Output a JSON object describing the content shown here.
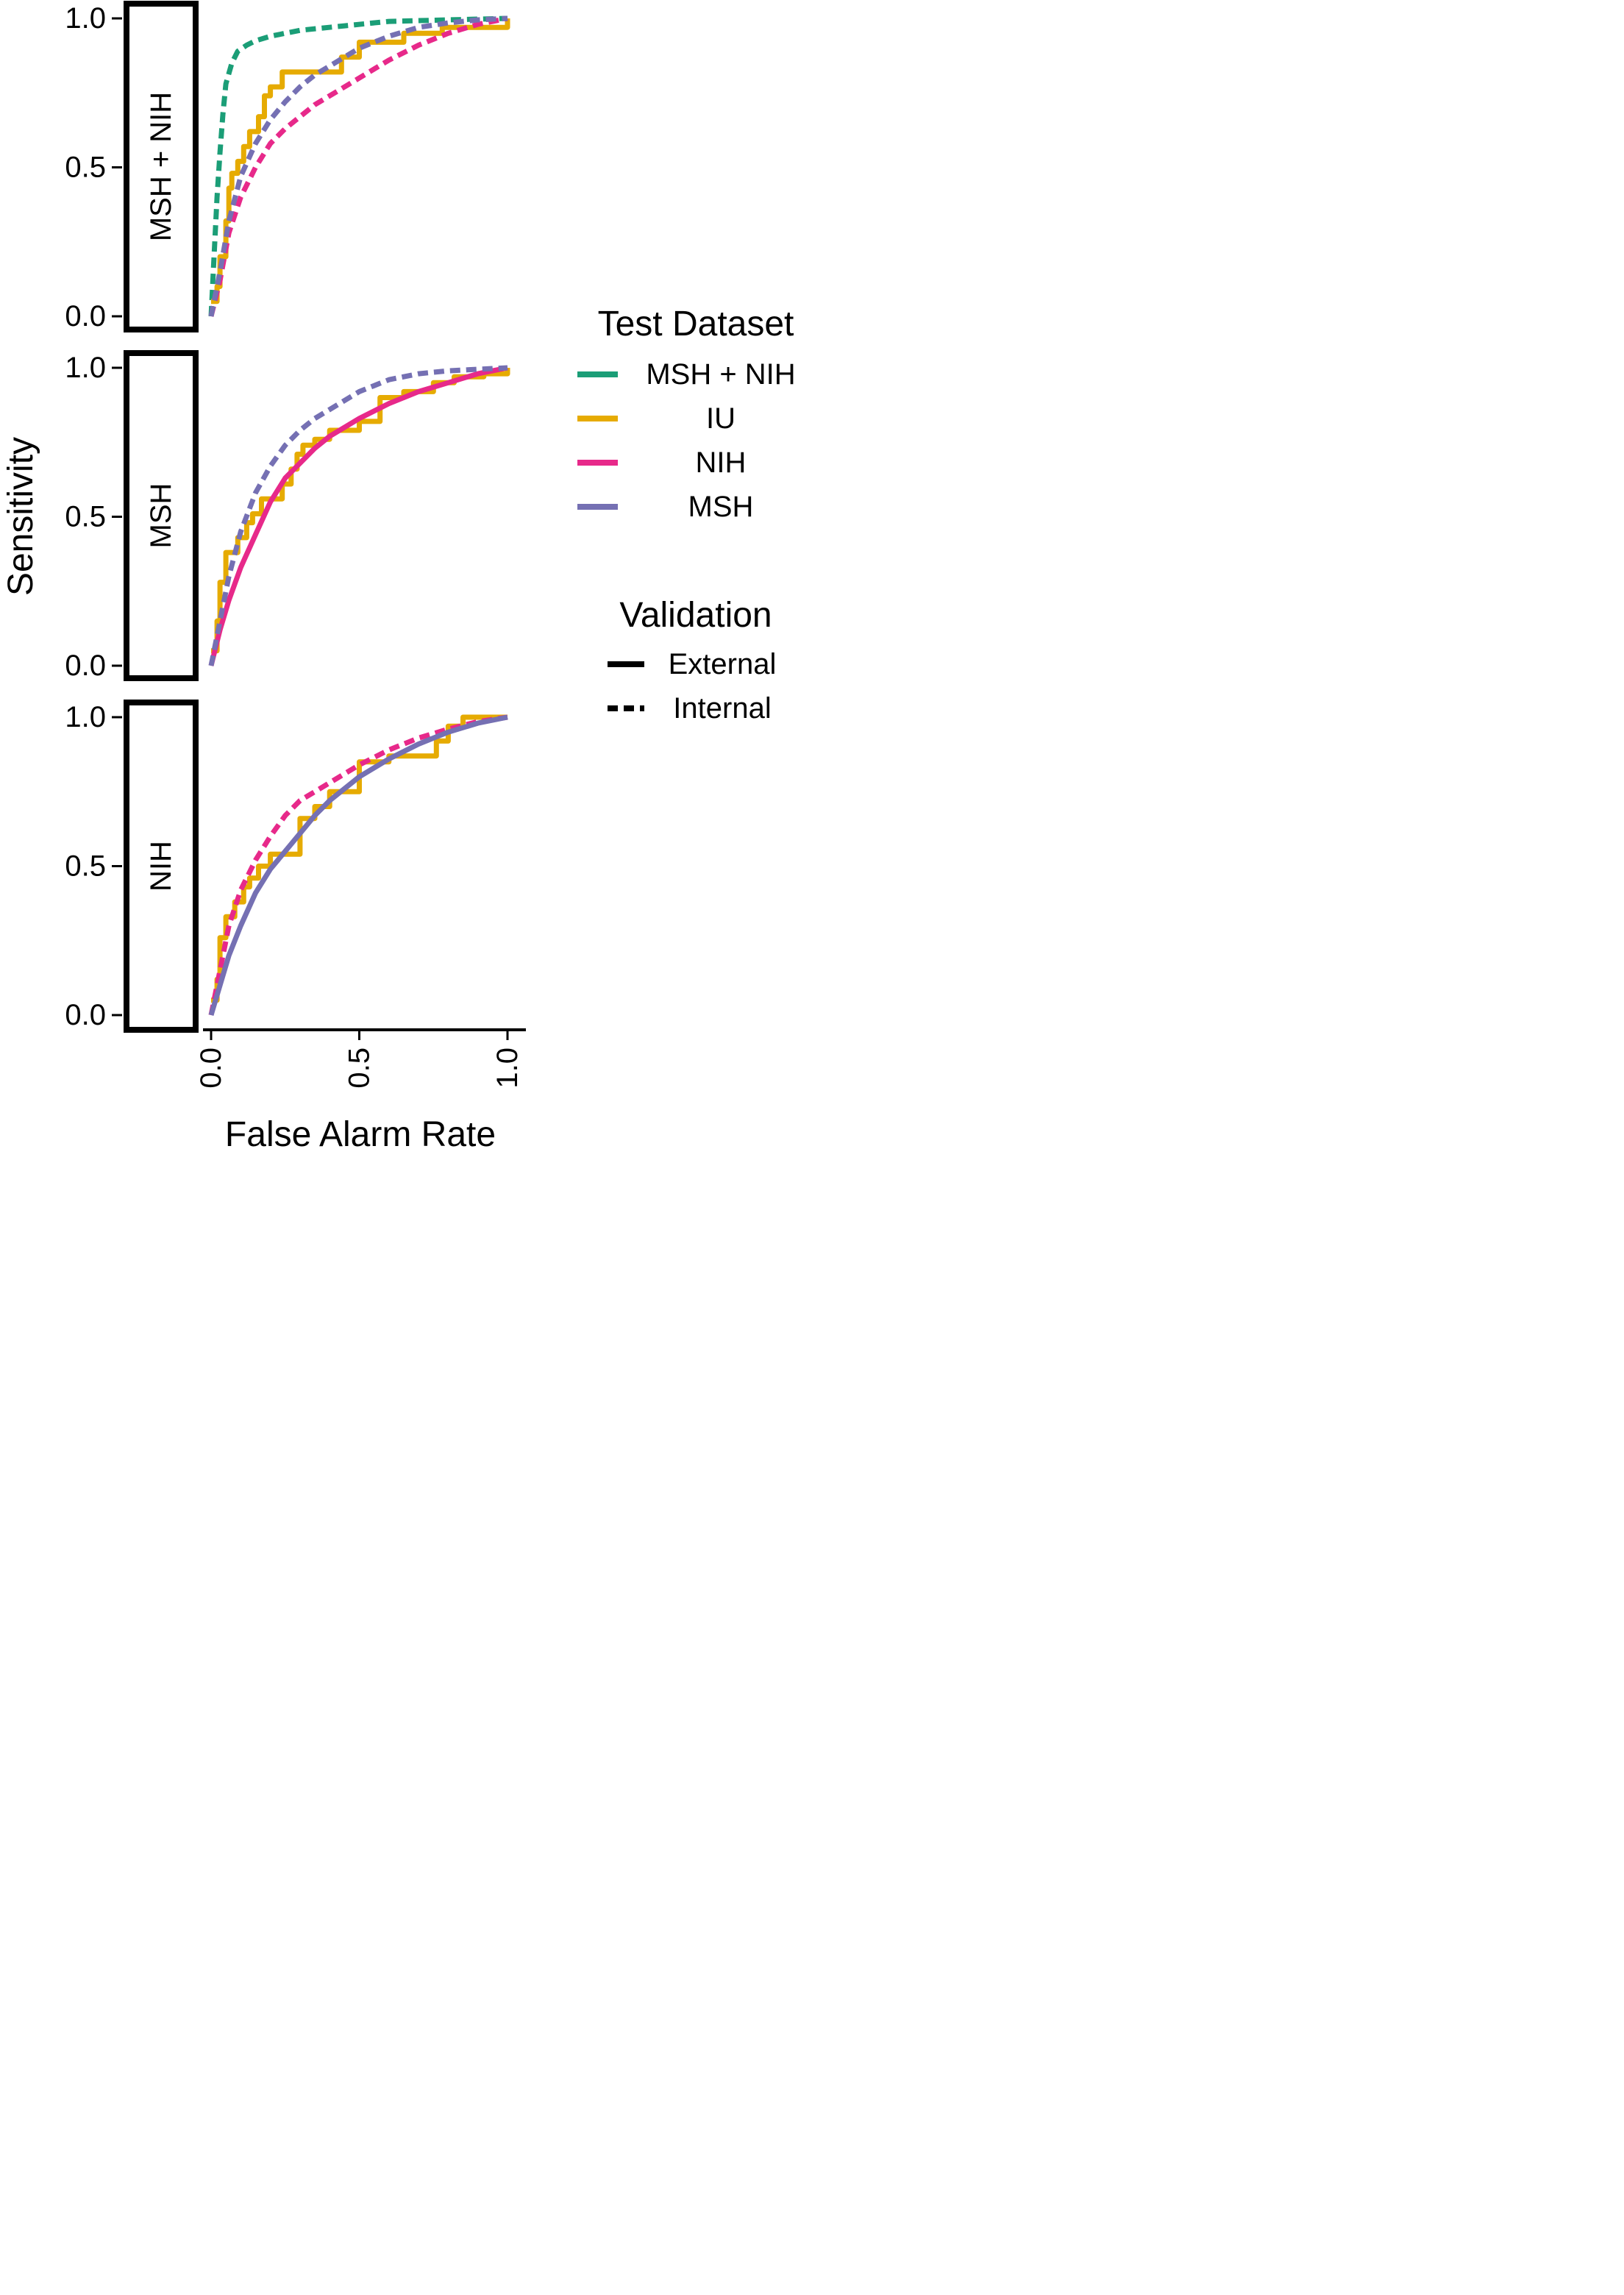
{
  "chart_data": {
    "type": "line",
    "xlabel": "False Alarm Rate",
    "ylabel": "Sensitivity",
    "xlim": [
      0,
      1
    ],
    "ylim": [
      0,
      1
    ],
    "x_ticks": [
      "0.0",
      "0.5",
      "1.0"
    ],
    "y_ticks": [
      "0.0",
      "0.5",
      "1.0"
    ],
    "grid": false,
    "legend_position": "right",
    "colors": {
      "MSH + NIH": "#1b9e77",
      "IU": "#e6ab02",
      "NIH": "#e7298a",
      "MSH": "#7570b3"
    },
    "legends": {
      "test_dataset": {
        "title": "Test Dataset",
        "entries": [
          "MSH + NIH",
          "IU",
          "NIH",
          "MSH"
        ]
      },
      "validation": {
        "title": "Validation",
        "entries": [
          "External",
          "Internal"
        ]
      }
    },
    "panels": [
      {
        "strip": "MSH + NIH",
        "series": [
          {
            "test_dataset": "MSH + NIH",
            "validation": "Internal",
            "step": false,
            "x": [
              0,
              0.01,
              0.02,
              0.03,
              0.04,
              0.05,
              0.07,
              0.09,
              0.12,
              0.15,
              0.2,
              0.3,
              0.45,
              0.6,
              0.8,
              1.0
            ],
            "y": [
              0,
              0.2,
              0.4,
              0.55,
              0.68,
              0.78,
              0.85,
              0.89,
              0.91,
              0.925,
              0.94,
              0.96,
              0.975,
              0.99,
              0.995,
              1.0
            ]
          },
          {
            "test_dataset": "IU",
            "validation": "External",
            "step": true,
            "x": [
              0,
              0.02,
              0.03,
              0.05,
              0.06,
              0.07,
              0.09,
              0.11,
              0.13,
              0.16,
              0.18,
              0.2,
              0.24,
              0.33,
              0.4,
              0.44,
              0.5,
              0.59,
              0.65,
              0.7,
              0.78,
              0.9,
              0.98,
              1.0
            ],
            "y": [
              0.05,
              0.1,
              0.2,
              0.32,
              0.43,
              0.48,
              0.52,
              0.57,
              0.62,
              0.67,
              0.74,
              0.77,
              0.82,
              0.82,
              0.82,
              0.87,
              0.92,
              0.92,
              0.95,
              0.95,
              0.97,
              0.97,
              0.97,
              1.0
            ]
          },
          {
            "test_dataset": "NIH",
            "validation": "Internal",
            "step": false,
            "x": [
              0,
              0.03,
              0.06,
              0.1,
              0.15,
              0.2,
              0.25,
              0.3,
              0.35,
              0.4,
              0.5,
              0.6,
              0.7,
              0.8,
              0.9,
              1.0
            ],
            "y": [
              0,
              0.12,
              0.28,
              0.4,
              0.5,
              0.58,
              0.63,
              0.67,
              0.71,
              0.74,
              0.8,
              0.86,
              0.91,
              0.95,
              0.98,
              1.0
            ]
          },
          {
            "test_dataset": "MSH",
            "validation": "Internal",
            "step": false,
            "x": [
              0,
              0.03,
              0.06,
              0.1,
              0.15,
              0.2,
              0.25,
              0.3,
              0.35,
              0.4,
              0.5,
              0.6,
              0.7,
              0.8,
              0.9,
              1.0
            ],
            "y": [
              0,
              0.15,
              0.32,
              0.47,
              0.58,
              0.66,
              0.72,
              0.77,
              0.81,
              0.84,
              0.9,
              0.94,
              0.97,
              0.985,
              0.995,
              1.0
            ]
          }
        ]
      },
      {
        "strip": "MSH",
        "series": [
          {
            "test_dataset": "IU",
            "validation": "External",
            "step": true,
            "x": [
              0,
              0.02,
              0.03,
              0.05,
              0.09,
              0.12,
              0.14,
              0.17,
              0.2,
              0.24,
              0.27,
              0.29,
              0.31,
              0.35,
              0.4,
              0.5,
              0.57,
              0.65,
              0.7,
              0.75,
              0.82,
              0.92,
              1.0
            ],
            "y": [
              0.05,
              0.15,
              0.28,
              0.38,
              0.43,
              0.48,
              0.51,
              0.56,
              0.56,
              0.61,
              0.66,
              0.71,
              0.74,
              0.76,
              0.79,
              0.82,
              0.9,
              0.92,
              0.92,
              0.95,
              0.97,
              0.98,
              1.0
            ]
          },
          {
            "test_dataset": "NIH",
            "validation": "External",
            "step": false,
            "x": [
              0,
              0.03,
              0.06,
              0.1,
              0.15,
              0.2,
              0.25,
              0.3,
              0.35,
              0.4,
              0.5,
              0.6,
              0.7,
              0.8,
              0.9,
              1.0
            ],
            "y": [
              0,
              0.12,
              0.22,
              0.33,
              0.44,
              0.55,
              0.63,
              0.68,
              0.73,
              0.77,
              0.83,
              0.88,
              0.92,
              0.95,
              0.98,
              1.0
            ]
          },
          {
            "test_dataset": "MSH",
            "validation": "Internal",
            "step": false,
            "x": [
              0,
              0.03,
              0.06,
              0.1,
              0.15,
              0.2,
              0.25,
              0.3,
              0.35,
              0.4,
              0.5,
              0.6,
              0.7,
              0.8,
              0.9,
              1.0
            ],
            "y": [
              0,
              0.15,
              0.3,
              0.45,
              0.58,
              0.67,
              0.74,
              0.79,
              0.83,
              0.86,
              0.92,
              0.96,
              0.98,
              0.99,
              0.995,
              1.0
            ]
          }
        ]
      },
      {
        "strip": "NIH",
        "series": [
          {
            "test_dataset": "IU",
            "validation": "External",
            "step": true,
            "x": [
              0,
              0.02,
              0.03,
              0.05,
              0.08,
              0.11,
              0.13,
              0.16,
              0.2,
              0.24,
              0.3,
              0.35,
              0.4,
              0.5,
              0.6,
              0.7,
              0.76,
              0.8,
              0.85,
              1.0
            ],
            "y": [
              0.05,
              0.12,
              0.26,
              0.33,
              0.38,
              0.43,
              0.46,
              0.5,
              0.54,
              0.54,
              0.66,
              0.7,
              0.75,
              0.85,
              0.87,
              0.87,
              0.92,
              0.97,
              1.0,
              1.0
            ]
          },
          {
            "test_dataset": "NIH",
            "validation": "Internal",
            "step": false,
            "x": [
              0,
              0.03,
              0.06,
              0.1,
              0.15,
              0.2,
              0.25,
              0.3,
              0.35,
              0.4,
              0.5,
              0.6,
              0.7,
              0.8,
              0.9,
              1.0
            ],
            "y": [
              0,
              0.15,
              0.3,
              0.42,
              0.52,
              0.6,
              0.67,
              0.72,
              0.75,
              0.78,
              0.84,
              0.89,
              0.93,
              0.96,
              0.985,
              1.0
            ]
          },
          {
            "test_dataset": "MSH",
            "validation": "External",
            "step": false,
            "x": [
              0,
              0.03,
              0.06,
              0.1,
              0.15,
              0.2,
              0.25,
              0.3,
              0.35,
              0.4,
              0.5,
              0.6,
              0.7,
              0.8,
              0.9,
              1.0
            ],
            "y": [
              0,
              0.1,
              0.2,
              0.3,
              0.41,
              0.49,
              0.55,
              0.61,
              0.67,
              0.72,
              0.8,
              0.86,
              0.91,
              0.95,
              0.98,
              1.0
            ]
          }
        ]
      }
    ]
  }
}
